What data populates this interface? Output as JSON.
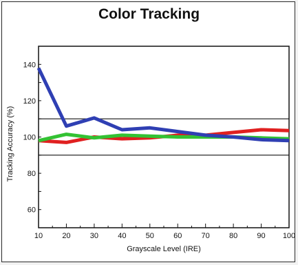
{
  "chart_data": {
    "type": "line",
    "title": "Color Tracking",
    "xlabel": "Grayscale Level (IRE)",
    "ylabel": "Tracking Accuracy (%)",
    "x": [
      10,
      20,
      30,
      40,
      50,
      60,
      70,
      80,
      90,
      100
    ],
    "xlim": [
      10,
      100
    ],
    "ylim": [
      50,
      150
    ],
    "x_ticks": [
      10,
      20,
      30,
      40,
      50,
      60,
      70,
      80,
      90,
      100
    ],
    "y_ticks": [
      60,
      80,
      100,
      120,
      140
    ],
    "reference_lines": [
      110,
      90
    ],
    "grid": false,
    "series": [
      {
        "color": "#e02020",
        "values": [
          98,
          97,
          100,
          99,
          99.5,
          101,
          101,
          102.5,
          104,
          103.5
        ]
      },
      {
        "color": "#33c233",
        "values": [
          98,
          101.5,
          99.5,
          101,
          100.5,
          100,
          100,
          100,
          99.5,
          99
        ]
      },
      {
        "color": "#2f3fb3",
        "values": [
          138,
          106,
          110.5,
          104,
          105,
          103,
          101,
          100,
          98.5,
          98
        ]
      }
    ]
  }
}
